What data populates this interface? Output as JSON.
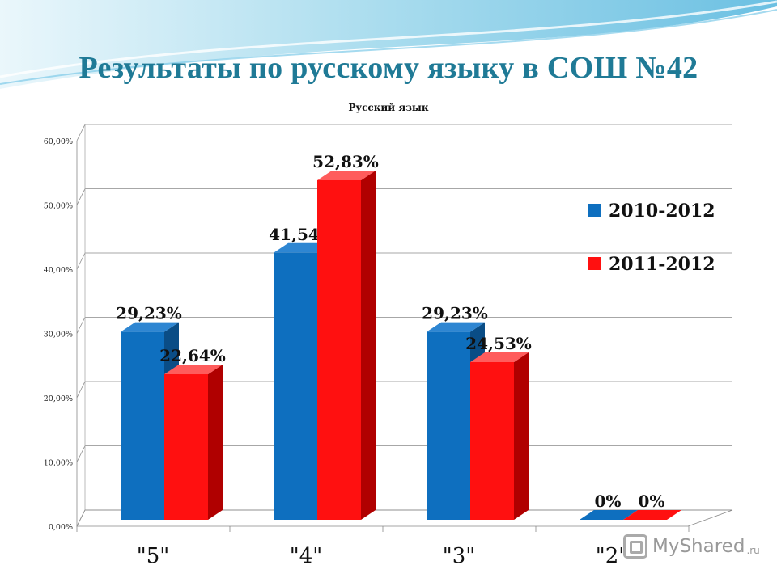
{
  "slide": {
    "title": "Результаты по русскому языку в СОШ №42"
  },
  "logo": {
    "name": "MyShared",
    "suffix": ".ru"
  },
  "chart_data": {
    "type": "bar",
    "title": "Русский язык",
    "categories": [
      "\"5\"",
      "\"4\"",
      "\"3\"",
      "\"2\""
    ],
    "series": [
      {
        "name": "2010-2012",
        "values": [
          29.23,
          41.54,
          29.23,
          0
        ],
        "labels": [
          "29,23%",
          "41,54%",
          "29,23%",
          "0%"
        ],
        "color": "#0e6fbf"
      },
      {
        "name": "2011-2012",
        "values": [
          22.64,
          52.83,
          24.53,
          0
        ],
        "labels": [
          "22,64%",
          "52,83%",
          "24,53%",
          "0%"
        ],
        "color": "#ff1010"
      }
    ],
    "yticks": [
      "0,00%",
      "10,00%",
      "20,00%",
      "30,00%",
      "40,00%",
      "50,00%",
      "60,00%"
    ],
    "ylim": [
      0,
      60
    ],
    "grid": true,
    "legend": "right"
  }
}
